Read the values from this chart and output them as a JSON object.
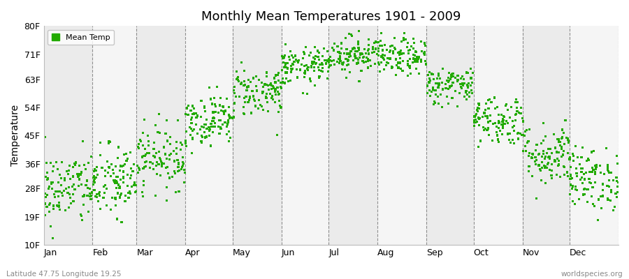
{
  "title": "Monthly Mean Temperatures 1901 - 2009",
  "ylabel": "Temperature",
  "xlabel_months": [
    "Jan",
    "Feb",
    "Mar",
    "Apr",
    "May",
    "Jun",
    "Jul",
    "Aug",
    "Sep",
    "Oct",
    "Nov",
    "Dec"
  ],
  "subtitle_left": "Latitude 47.75 Longitude 19.25",
  "subtitle_right": "worldspecies.org",
  "dot_color": "#22aa00",
  "background_color": "#ffffff",
  "plot_bg_odd": "#ebebeb",
  "plot_bg_even": "#f5f5f5",
  "ytick_labels": [
    "10F",
    "19F",
    "28F",
    "36F",
    "45F",
    "54F",
    "63F",
    "71F",
    "80F"
  ],
  "ytick_values": [
    10,
    19,
    28,
    36,
    45,
    54,
    63,
    71,
    80
  ],
  "ylim": [
    10,
    80
  ],
  "n_years": 109,
  "monthly_mean_F": [
    28,
    30,
    38,
    50,
    59,
    67,
    71,
    70,
    61,
    50,
    39,
    31
  ],
  "monthly_std_F": [
    6,
    6,
    5,
    4,
    4,
    3,
    3,
    3,
    3,
    4,
    5,
    5
  ],
  "month_days": [
    31,
    28,
    31,
    30,
    31,
    30,
    31,
    31,
    30,
    31,
    30,
    31
  ],
  "total_days": 365
}
